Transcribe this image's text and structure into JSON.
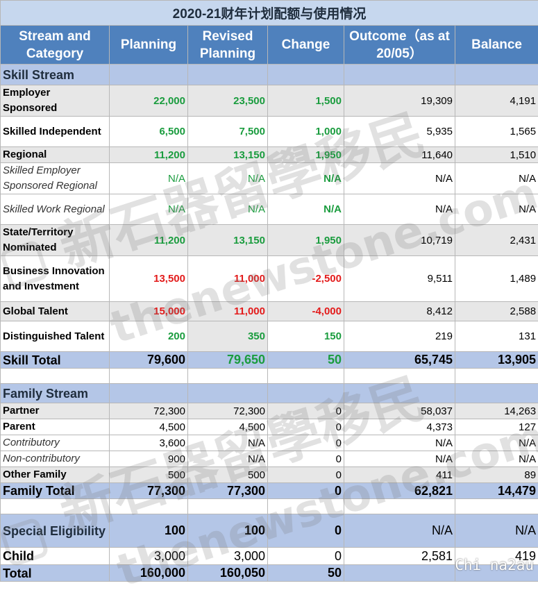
{
  "title": "2020-21财年计划配额与使用情况",
  "headers": [
    "Stream and Category",
    "Planning",
    "Revised Planning",
    "Change",
    "Outcome（as at 20/05）",
    "Balance"
  ],
  "sections": {
    "skill": "Skill Stream",
    "family": "Family Stream"
  },
  "skill_rows": [
    {
      "label": "Employer Sponsored",
      "planning": "22,000",
      "revised": "23,500",
      "change": "1,500",
      "outcome": "19,309",
      "balance": "4,191"
    },
    {
      "label": "Skilled Independent",
      "planning": "6,500",
      "revised": "7,500",
      "change": "1,000",
      "outcome": "5,935",
      "balance": "1,565"
    },
    {
      "label": "Regional",
      "planning": "11,200",
      "revised": "13,150",
      "change": "1,950",
      "outcome": "11,640",
      "balance": "1,510"
    },
    {
      "label": "Skilled Employer Sponsored Regional",
      "planning": "N/A",
      "revised": "N/A",
      "change": "N/A",
      "outcome": "N/A",
      "balance": "N/A"
    },
    {
      "label": "Skilled Work Regional",
      "planning": "N/A",
      "revised": "N/A",
      "change": "N/A",
      "outcome": "N/A",
      "balance": "N/A"
    },
    {
      "label": "State/Territory Nominated",
      "planning": "11,200",
      "revised": "13,150",
      "change": "1,950",
      "outcome": "10,719",
      "balance": "2,431"
    },
    {
      "label": "Business Innovation and Investment",
      "planning": "13,500",
      "revised": "11,000",
      "change": "-2,500",
      "outcome": "9,511",
      "balance": "1,489"
    },
    {
      "label": "Global Talent",
      "planning": "15,000",
      "revised": "11,000",
      "change": "-4,000",
      "outcome": "8,412",
      "balance": "2,588"
    },
    {
      "label": "Distinguished Talent",
      "planning": "200",
      "revised": "350",
      "change": "150",
      "outcome": "219",
      "balance": "131"
    }
  ],
  "skill_total": {
    "label": "Skill Total",
    "planning": "79,600",
    "revised": "79,650",
    "change": "50",
    "outcome": "65,745",
    "balance": "13,905"
  },
  "family_rows": [
    {
      "label": "Partner",
      "planning": "72,300",
      "revised": "72,300",
      "change": "0",
      "outcome": "58,037",
      "balance": "14,263"
    },
    {
      "label": "Parent",
      "planning": "4,500",
      "revised": "4,500",
      "change": "0",
      "outcome": "4,373",
      "balance": "127"
    },
    {
      "label": "Contributory",
      "planning": "3,600",
      "revised": "N/A",
      "change": "0",
      "outcome": "N/A",
      "balance": "N/A"
    },
    {
      "label": "Non-contributory",
      "planning": "900",
      "revised": "N/A",
      "change": "0",
      "outcome": "N/A",
      "balance": "N/A"
    },
    {
      "label": "Other Family",
      "planning": "500",
      "revised": "500",
      "change": "0",
      "outcome": "411",
      "balance": "89"
    }
  ],
  "family_total": {
    "label": "Family Total",
    "planning": "77,300",
    "revised": "77,300",
    "change": "0",
    "outcome": "62,821",
    "balance": "14,479"
  },
  "special": {
    "label": "Special Eligibility",
    "planning": "100",
    "revised": "100",
    "change": "0",
    "outcome": "N/A",
    "balance": "N/A"
  },
  "child": {
    "label": "Child",
    "planning": "3,000",
    "revised": "3,000",
    "change": "0",
    "outcome": "2,581",
    "balance": "419"
  },
  "total": {
    "label": "Total",
    "planning": "160,000",
    "revised": "160,050",
    "change": "50"
  },
  "watermark": {
    "cn": "新石器留學移民",
    "en": "thenewstone.com"
  },
  "corner_tag": "Chi na2au",
  "colors": {
    "header_bg": "#4f81bd",
    "section_bg": "#b4c6e7",
    "increase": "#1a9c3e",
    "decrease": "#e31b1b",
    "gray_row": "#e7e7e7"
  }
}
